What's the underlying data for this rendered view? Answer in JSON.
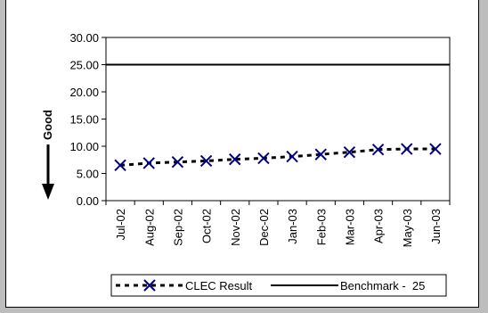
{
  "chart_data": {
    "type": "line",
    "title": "",
    "xlabel": "",
    "ylabel": "Good",
    "categories": [
      "Jul-02",
      "Aug-02",
      "Sep-02",
      "Oct-02",
      "Nov-02",
      "Dec-02",
      "Jan-03",
      "Feb-03",
      "Mar-03",
      "Apr-03",
      "May-03",
      "Jun-03"
    ],
    "ylim": [
      0,
      30
    ],
    "yticks": [
      "0.00",
      "5.00",
      "10.00",
      "15.00",
      "20.00",
      "25.00",
      "30.00"
    ],
    "grid": false,
    "legend_placement": "bottom",
    "series": [
      {
        "name": "CLEC Result",
        "values": [
          6.5,
          6.9,
          7.1,
          7.3,
          7.6,
          7.8,
          8.1,
          8.5,
          8.9,
          9.4,
          9.5,
          9.5
        ],
        "color": "#000080",
        "marker": "x",
        "line_style": "dotted"
      },
      {
        "name": "Benchmark -  25",
        "values": [
          25,
          25,
          25,
          25,
          25,
          25,
          25,
          25,
          25,
          25,
          25,
          25
        ],
        "color": "#000000",
        "line_style": "solid"
      }
    ]
  }
}
